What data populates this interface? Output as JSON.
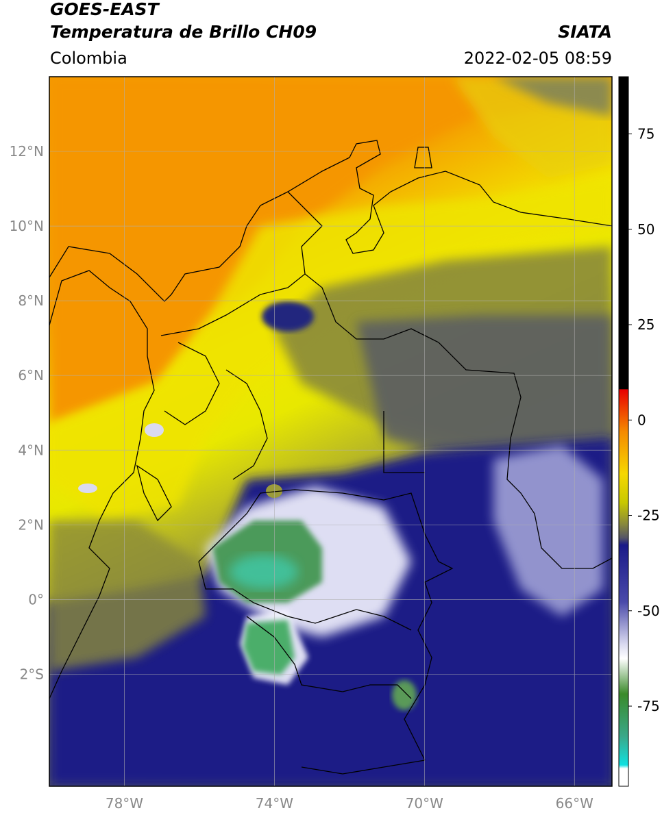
{
  "header": {
    "satellite": "GOES-EAST",
    "product": "Temperatura de Brillo CH09",
    "agency": "SIATA",
    "region": "Colombia",
    "timestamp": "2022-02-05 08:59"
  },
  "map": {
    "lon_range": [
      -80,
      -65
    ],
    "lat_range": [
      -5,
      14
    ],
    "lat_ticks": [
      {
        "value": 12,
        "label": "12°N"
      },
      {
        "value": 10,
        "label": "10°N"
      },
      {
        "value": 8,
        "label": "8°N"
      },
      {
        "value": 6,
        "label": "6°N"
      },
      {
        "value": 4,
        "label": "4°N"
      },
      {
        "value": 2,
        "label": "2°N"
      },
      {
        "value": 0,
        "label": "0°"
      },
      {
        "value": -2,
        "label": "2°S"
      }
    ],
    "lon_ticks": [
      {
        "value": -78,
        "label": "78°W"
      },
      {
        "value": -74,
        "label": "74°W"
      },
      {
        "value": -70,
        "label": "70°W"
      },
      {
        "value": -66,
        "label": "66°W"
      }
    ],
    "colors": {
      "warm_orange": "#f59a00",
      "yellow": "#f2f000",
      "olive": "#9a9a2a",
      "dark_gray": "#555566",
      "navy": "#1c1f86",
      "white_cloud": "#f4f4ff",
      "green": "#4c9a5a",
      "teal": "#3fc9a9"
    }
  },
  "colorbar": {
    "min": -96,
    "max": 90,
    "ticks": [
      {
        "value": 75,
        "label": "75"
      },
      {
        "value": 50,
        "label": "50"
      },
      {
        "value": 25,
        "label": "25"
      },
      {
        "value": 0,
        "label": "0"
      },
      {
        "value": -25,
        "label": "-25"
      },
      {
        "value": -50,
        "label": "-50"
      },
      {
        "value": -75,
        "label": "-75"
      }
    ]
  }
}
